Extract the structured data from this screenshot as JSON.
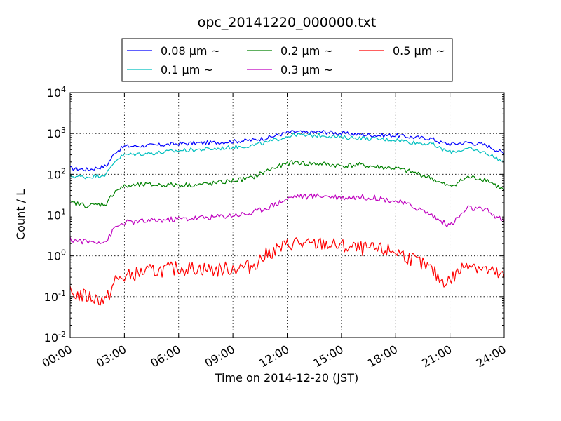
{
  "chart_data": {
    "type": "line",
    "title": "opc_20141220_000000.txt",
    "xlabel": "Time on 2014-12-20 (JST)",
    "ylabel": "Count / L",
    "x_unit": "hours",
    "xlim": [
      0,
      24
    ],
    "ylim": [
      0.01,
      10000
    ],
    "yscale": "log",
    "grid": true,
    "legend_position": "top-center",
    "x_ticks": [
      {
        "value": 0,
        "label": "00:00"
      },
      {
        "value": 3,
        "label": "03:00"
      },
      {
        "value": 6,
        "label": "06:00"
      },
      {
        "value": 9,
        "label": "09:00"
      },
      {
        "value": 12,
        "label": "12:00"
      },
      {
        "value": 15,
        "label": "15:00"
      },
      {
        "value": 18,
        "label": "18:00"
      },
      {
        "value": 21,
        "label": "21:00"
      },
      {
        "value": 24,
        "label": "24:00"
      }
    ],
    "y_ticks": [
      {
        "value": 0.01,
        "base": "10",
        "exp": "-2"
      },
      {
        "value": 0.1,
        "base": "10",
        "exp": "-1"
      },
      {
        "value": 1,
        "base": "10",
        "exp": "0"
      },
      {
        "value": 10,
        "base": "10",
        "exp": "1"
      },
      {
        "value": 100,
        "base": "10",
        "exp": "2"
      },
      {
        "value": 1000,
        "base": "10",
        "exp": "3"
      },
      {
        "value": 10000,
        "base": "10",
        "exp": "4"
      }
    ],
    "x": [
      0,
      1,
      2,
      2.5,
      3,
      4,
      5,
      6,
      7,
      8,
      9,
      10,
      11,
      12,
      12.5,
      13,
      14,
      15,
      16,
      17,
      18,
      19,
      20,
      20.5,
      21,
      22,
      23,
      24
    ],
    "series": [
      {
        "name": "0.08 μm ~",
        "color": "#0000ff",
        "values": [
          140,
          130,
          160,
          350,
          480,
          500,
          520,
          560,
          580,
          600,
          640,
          680,
          800,
          1050,
          1100,
          1050,
          1100,
          1000,
          950,
          900,
          900,
          800,
          750,
          600,
          550,
          600,
          520,
          320
        ]
      },
      {
        "name": "0.1 μm ~",
        "color": "#00bfbf",
        "values": [
          90,
          85,
          100,
          220,
          300,
          320,
          340,
          380,
          400,
          420,
          460,
          500,
          620,
          850,
          950,
          880,
          900,
          800,
          780,
          720,
          700,
          600,
          550,
          420,
          350,
          420,
          330,
          200
        ]
      },
      {
        "name": "0.2 μm ~",
        "color": "#008000",
        "values": [
          20,
          17,
          19,
          40,
          50,
          55,
          55,
          55,
          55,
          60,
          70,
          80,
          130,
          180,
          200,
          180,
          180,
          160,
          170,
          150,
          140,
          110,
          80,
          60,
          50,
          85,
          75,
          40
        ]
      },
      {
        "name": "0.3 μm ~",
        "color": "#bf00bf",
        "values": [
          2.5,
          2.2,
          2.3,
          5,
          6.5,
          7,
          7.5,
          8,
          8.5,
          9,
          10,
          11,
          16,
          25,
          30,
          28,
          30,
          27,
          28,
          26,
          22,
          16,
          10,
          7,
          5.5,
          15,
          13,
          7
        ]
      },
      {
        "name": "0.5 μm ~",
        "color": "#ff0000",
        "values": [
          0.12,
          0.1,
          0.08,
          0.25,
          0.3,
          0.4,
          0.45,
          0.5,
          0.5,
          0.45,
          0.5,
          0.55,
          1.2,
          1.8,
          2.2,
          1.8,
          2,
          1.7,
          1.5,
          1.4,
          1.3,
          0.8,
          0.45,
          0.25,
          0.25,
          0.7,
          0.45,
          0.3
        ]
      }
    ]
  }
}
